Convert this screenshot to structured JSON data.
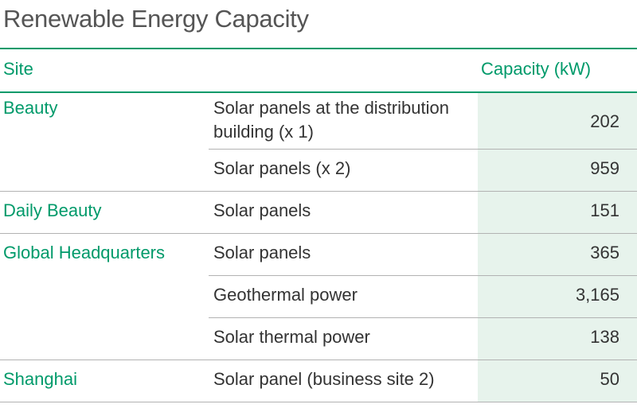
{
  "title": "Renewable Energy Capacity",
  "header": {
    "site": "Site",
    "capacity": "Capacity (kW)"
  },
  "rows": [
    {
      "site": "Beauty",
      "source_line1": "Solar panels at the distribution",
      "source_line2": "building (x 1)",
      "capacity": "202"
    },
    {
      "site": "",
      "source_line1": "Solar panels (x 2)",
      "capacity": "959"
    },
    {
      "site": "Daily Beauty",
      "source_line1": "Solar panels",
      "capacity": "151"
    },
    {
      "site": "Global Headquarters",
      "source_line1": "Solar panels",
      "capacity": "365"
    },
    {
      "site": "",
      "source_line1": "Geothermal power",
      "capacity": "3,165"
    },
    {
      "site": "",
      "source_line1": "Solar thermal power",
      "capacity": "138"
    },
    {
      "site": "Shanghai",
      "source_line1": "Solar panel (business site 2)",
      "capacity": "50"
    }
  ],
  "colors": {
    "accent": "#009a6a",
    "cell_fill": "#e7f3ec",
    "text": "#333333",
    "title": "#555555",
    "rule": "#b2b2b2"
  }
}
